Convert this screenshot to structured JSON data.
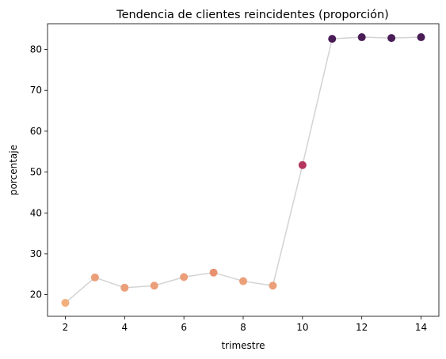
{
  "chart_data": {
    "type": "scatter",
    "title": "Tendencia de clientes reincidentes (proporción)",
    "xlabel": "trimestre",
    "ylabel": "porcentaje",
    "xlim": [
      1.4,
      14.6
    ],
    "ylim": [
      14.7,
      86.3
    ],
    "xticks": [
      2,
      4,
      6,
      8,
      10,
      12,
      14
    ],
    "yticks": [
      20,
      30,
      40,
      50,
      60,
      70,
      80
    ],
    "grid": false,
    "connector_color": "#d3d3d3",
    "series": [
      {
        "x": [
          2,
          3,
          4,
          5,
          6,
          7,
          8,
          9,
          10,
          11,
          12,
          13,
          14
        ],
        "values": [
          18.0,
          24.2,
          21.7,
          22.2,
          24.3,
          25.4,
          23.3,
          22.2,
          51.7,
          82.6,
          83.0,
          82.8,
          83.0
        ],
        "colors": [
          "#f0b07e",
          "#eb9f78",
          "#eb9f78",
          "#eb9f78",
          "#eb9f78",
          "#e89170",
          "#eb9f78",
          "#eb9f78",
          "#b3365e",
          "#4a1d57",
          "#4a1d57",
          "#4a1d57",
          "#4a1d57"
        ]
      }
    ]
  }
}
